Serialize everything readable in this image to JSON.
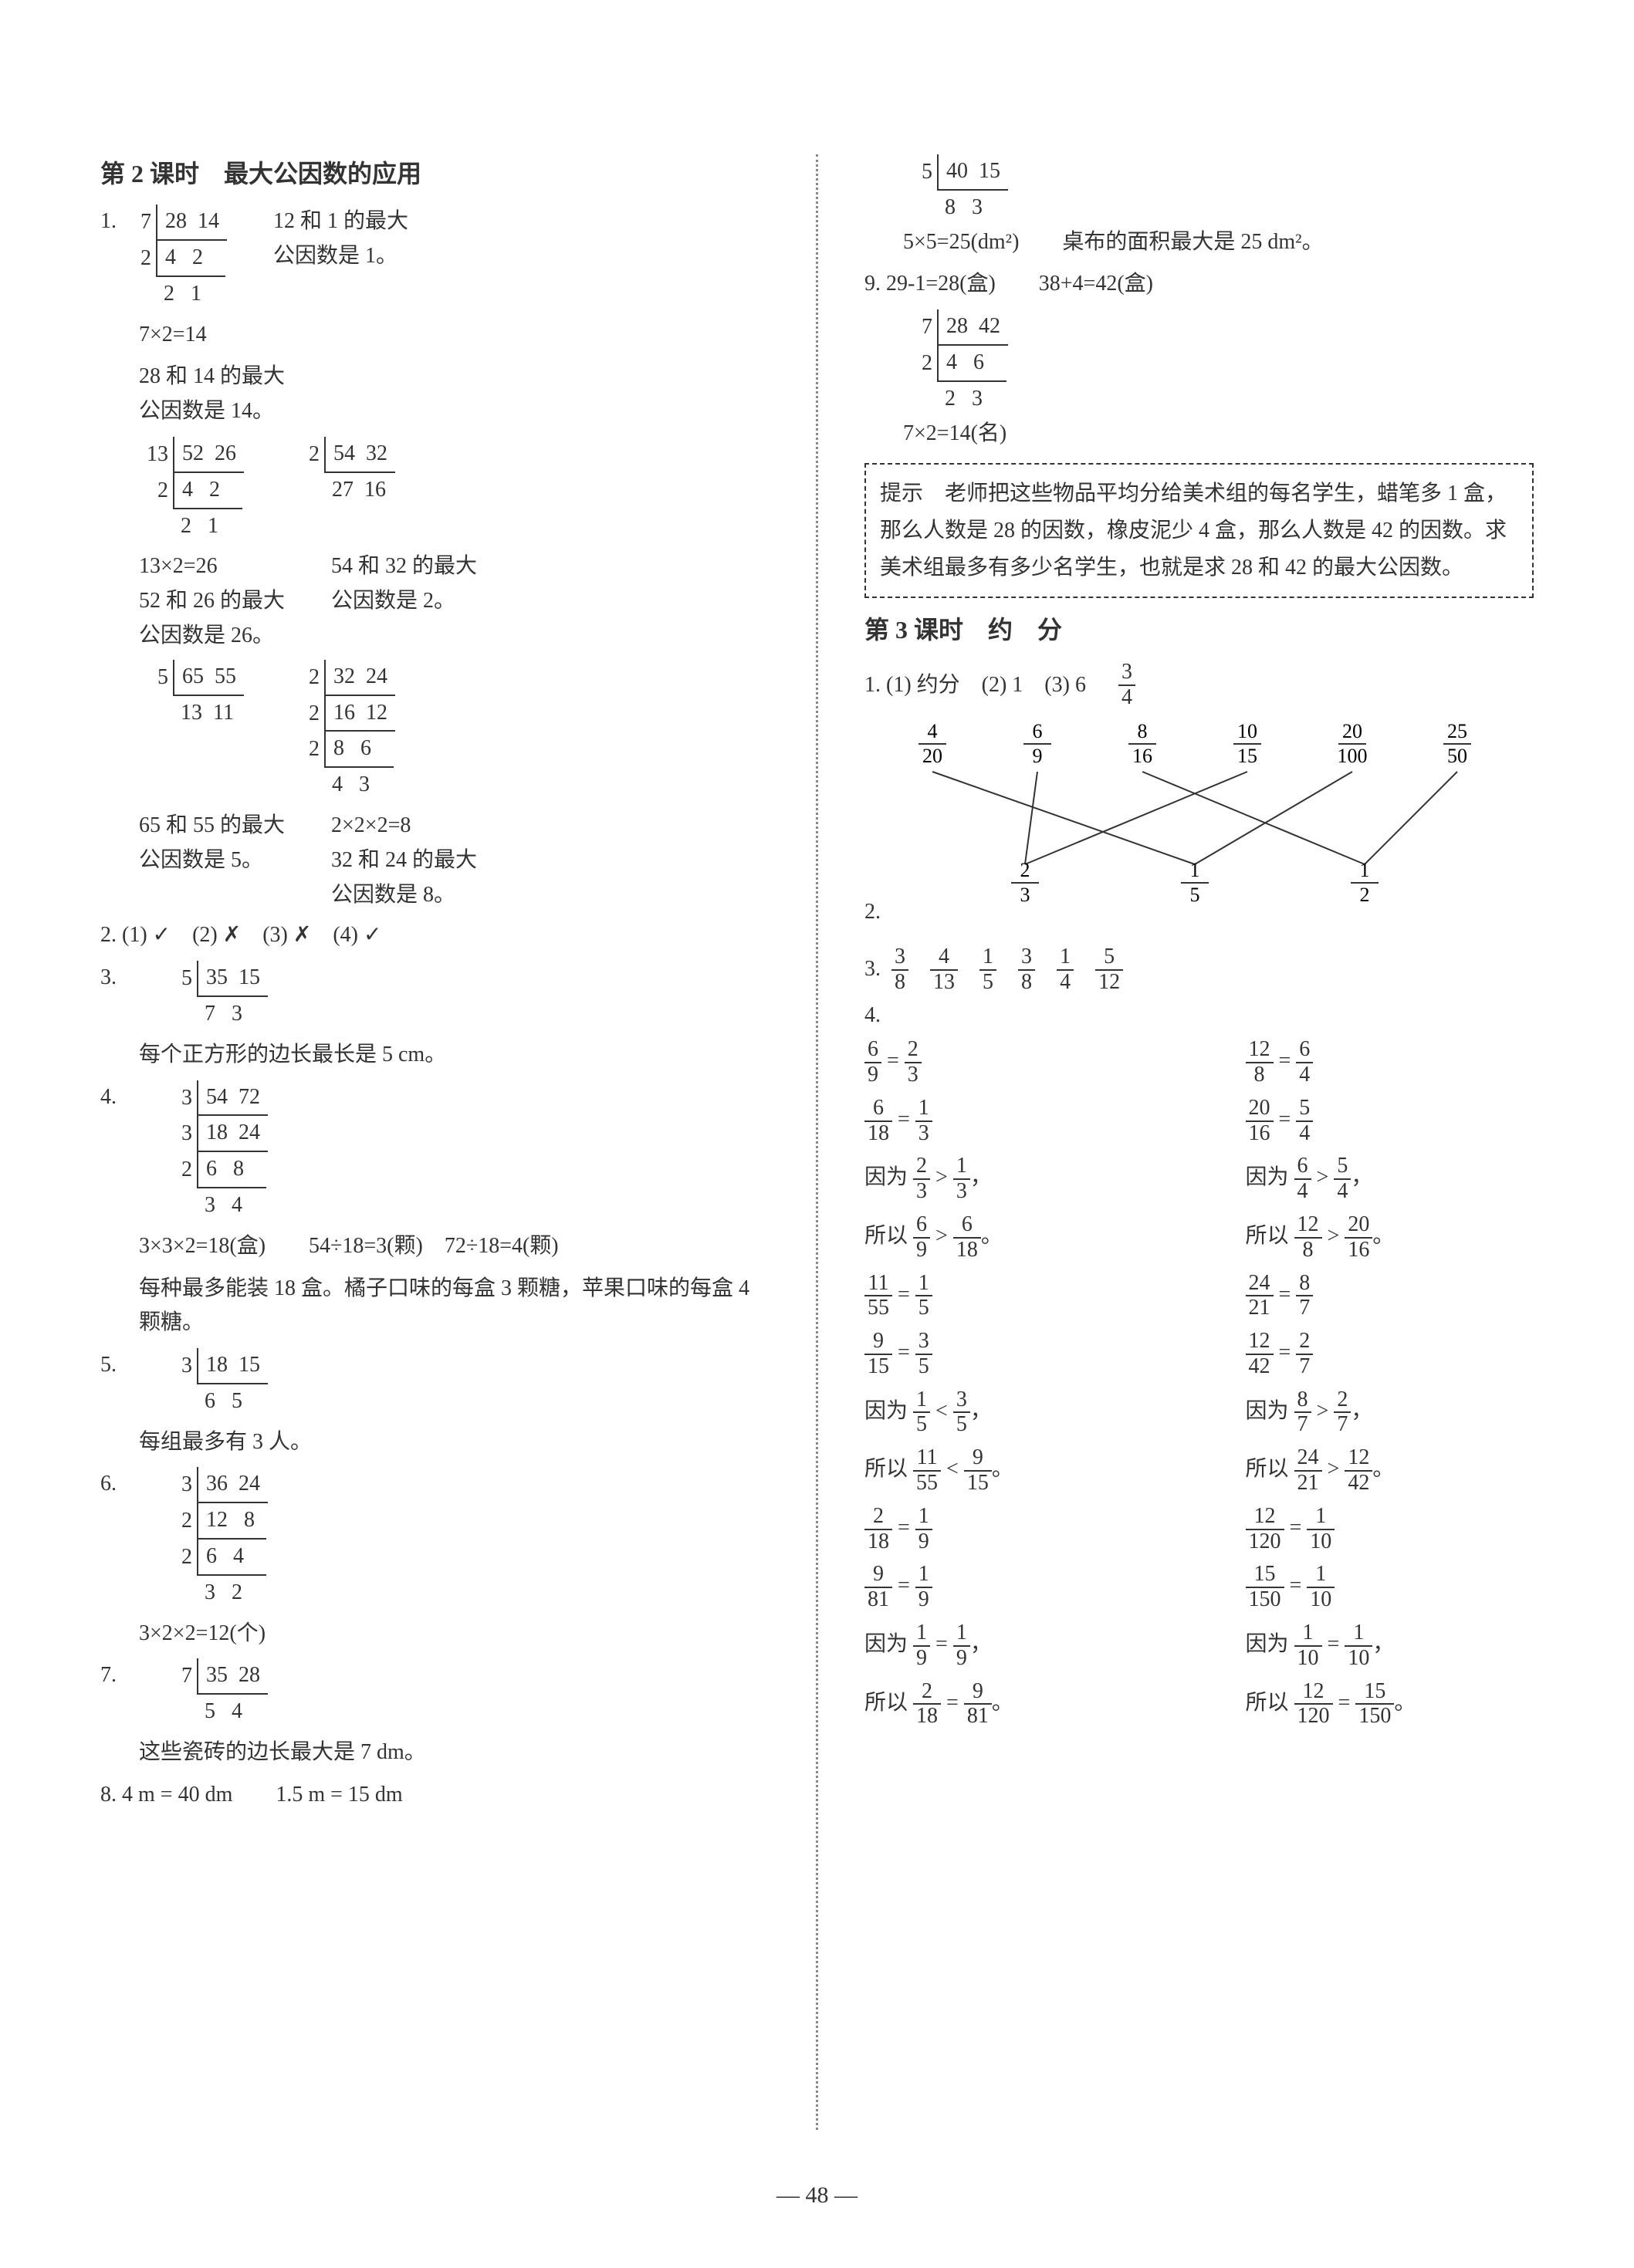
{
  "page_number": "48",
  "left": {
    "title": "第 2 课时　最大公因数的应用",
    "q1": {
      "div1": {
        "steps": [
          [
            "7",
            "28  14"
          ],
          [
            "2",
            "4   2"
          ]
        ],
        "bottom": "2   1"
      },
      "r1": [
        "12 和 1 的最大",
        "公因数是 1。"
      ],
      "calc1": "7×2=14",
      "r2": [
        "28 和 14 的最大",
        "公因数是 14。"
      ],
      "div2": {
        "steps": [
          [
            "13",
            "52  26"
          ],
          [
            "2",
            "4   2"
          ]
        ],
        "bottom": "2   1"
      },
      "div3": {
        "steps": [
          [
            "2",
            "54  32"
          ]
        ],
        "bottom": "27  16"
      },
      "calc2": "13×2=26",
      "r3": [
        "52 和 26 的最大",
        "公因数是 26。"
      ],
      "r4": [
        "54 和 32 的最大",
        "公因数是 2。"
      ],
      "div4": {
        "steps": [
          [
            "5",
            "65  55"
          ]
        ],
        "bottom": "13  11"
      },
      "div5": {
        "steps": [
          [
            "2",
            "32  24"
          ],
          [
            "2",
            "16  12"
          ],
          [
            "2",
            "8   6"
          ]
        ],
        "bottom": "4   3"
      },
      "r5": [
        "65 和 55 的最大",
        "公因数是 5。"
      ],
      "calc3": "2×2×2=8",
      "r6": [
        "32 和 24 的最大",
        "公因数是 8。"
      ]
    },
    "q2": "2. (1) ✓　(2) ✗　(3) ✗　(4) ✓",
    "q3": {
      "label": "3.",
      "div": {
        "steps": [
          [
            "5",
            "35  15"
          ]
        ],
        "bottom": "7   3"
      },
      "text": "每个正方形的边长最长是 5 cm。"
    },
    "q4": {
      "label": "4.",
      "div": {
        "steps": [
          [
            "3",
            "54  72"
          ],
          [
            "3",
            "18  24"
          ],
          [
            "2",
            "6   8"
          ]
        ],
        "bottom": "3   4"
      },
      "calc": "3×3×2=18(盒)　　54÷18=3(颗)　72÷18=4(颗)",
      "text": "每种最多能装 18 盒。橘子口味的每盒 3 颗糖，苹果口味的每盒 4 颗糖。"
    },
    "q5": {
      "label": "5.",
      "div": {
        "steps": [
          [
            "3",
            "18  15"
          ]
        ],
        "bottom": "6   5"
      },
      "text": "每组最多有 3 人。"
    },
    "q6": {
      "label": "6.",
      "div": {
        "steps": [
          [
            "3",
            "36  24"
          ],
          [
            "2",
            "12   8"
          ],
          [
            "2",
            "6   4"
          ]
        ],
        "bottom": "3   2"
      },
      "calc": "3×2×2=12(个)"
    },
    "q7": {
      "label": "7.",
      "div": {
        "steps": [
          [
            "7",
            "35  28"
          ]
        ],
        "bottom": "5   4"
      },
      "text": "这些瓷砖的边长最大是 7 dm。"
    },
    "q8": "8. 4 m = 40 dm　　1.5 m = 15 dm"
  },
  "right": {
    "q8b": {
      "div": {
        "steps": [
          [
            "5",
            "40  15"
          ]
        ],
        "bottom": "8   3"
      },
      "calc": "5×5=25(dm²)　　桌布的面积最大是 25 dm²。"
    },
    "q9": {
      "line1": "9. 29-1=28(盒)　　38+4=42(盒)",
      "div": {
        "steps": [
          [
            "7",
            "28  42"
          ],
          [
            "2",
            "4   6"
          ]
        ],
        "bottom": "2   3"
      },
      "calc": "7×2=14(名)"
    },
    "hint": "提示　老师把这些物品平均分给美术组的每名学生，蜡笔多 1 盒，那么人数是 28 的因数，橡皮泥少 4 盒，那么人数是 42 的因数。求美术组最多有多少名学生，也就是求 28 和 42 的最大公因数。",
    "title2": "第 3 课时　约　分",
    "s1": {
      "prefix": "1. (1) 约分　(2) 1　(3) 6　",
      "frac": {
        "n": "3",
        "d": "4"
      }
    },
    "s2": {
      "label": "2.",
      "top_fracs": [
        {
          "n": "4",
          "d": "20"
        },
        {
          "n": "6",
          "d": "9"
        },
        {
          "n": "8",
          "d": "16"
        },
        {
          "n": "10",
          "d": "15"
        },
        {
          "n": "20",
          "d": "100"
        },
        {
          "n": "25",
          "d": "50"
        }
      ],
      "bottom_fracs": [
        {
          "n": "2",
          "d": "3"
        },
        {
          "n": "1",
          "d": "5"
        },
        {
          "n": "1",
          "d": "2"
        }
      ],
      "edges": [
        [
          0,
          1
        ],
        [
          1,
          0
        ],
        [
          2,
          2
        ],
        [
          3,
          0
        ],
        [
          4,
          1
        ],
        [
          5,
          2
        ]
      ]
    },
    "s3": {
      "label": "3.",
      "fracs": [
        {
          "n": "3",
          "d": "8"
        },
        {
          "n": "4",
          "d": "13"
        },
        {
          "n": "1",
          "d": "5"
        },
        {
          "n": "3",
          "d": "8"
        },
        {
          "n": "1",
          "d": "4"
        },
        {
          "n": "5",
          "d": "12"
        }
      ]
    },
    "s4": {
      "label": "4.",
      "pairs": [
        {
          "left": {
            "eq1": {
              "a": {
                "n": "6",
                "d": "9"
              },
              "b": {
                "n": "2",
                "d": "3"
              }
            },
            "eq2": {
              "a": {
                "n": "6",
                "d": "18"
              },
              "b": {
                "n": "1",
                "d": "3"
              }
            },
            "because": {
              "a": {
                "n": "2",
                "d": "3"
              },
              "op": ">",
              "b": {
                "n": "1",
                "d": "3"
              }
            },
            "so": {
              "a": {
                "n": "6",
                "d": "9"
              },
              "op": ">",
              "b": {
                "n": "6",
                "d": "18"
              }
            }
          },
          "right": {
            "eq1": {
              "a": {
                "n": "12",
                "d": "8"
              },
              "b": {
                "n": "6",
                "d": "4"
              }
            },
            "eq2": {
              "a": {
                "n": "20",
                "d": "16"
              },
              "b": {
                "n": "5",
                "d": "4"
              }
            },
            "because": {
              "a": {
                "n": "6",
                "d": "4"
              },
              "op": ">",
              "b": {
                "n": "5",
                "d": "4"
              }
            },
            "so": {
              "a": {
                "n": "12",
                "d": "8"
              },
              "op": ">",
              "b": {
                "n": "20",
                "d": "16"
              }
            }
          }
        },
        {
          "left": {
            "eq1": {
              "a": {
                "n": "11",
                "d": "55"
              },
              "b": {
                "n": "1",
                "d": "5"
              }
            },
            "eq2": {
              "a": {
                "n": "9",
                "d": "15"
              },
              "b": {
                "n": "3",
                "d": "5"
              }
            },
            "because": {
              "a": {
                "n": "1",
                "d": "5"
              },
              "op": "<",
              "b": {
                "n": "3",
                "d": "5"
              }
            },
            "so": {
              "a": {
                "n": "11",
                "d": "55"
              },
              "op": "<",
              "b": {
                "n": "9",
                "d": "15"
              }
            }
          },
          "right": {
            "eq1": {
              "a": {
                "n": "24",
                "d": "21"
              },
              "b": {
                "n": "8",
                "d": "7"
              }
            },
            "eq2": {
              "a": {
                "n": "12",
                "d": "42"
              },
              "b": {
                "n": "2",
                "d": "7"
              }
            },
            "because": {
              "a": {
                "n": "8",
                "d": "7"
              },
              "op": ">",
              "b": {
                "n": "2",
                "d": "7"
              }
            },
            "so": {
              "a": {
                "n": "24",
                "d": "21"
              },
              "op": ">",
              "b": {
                "n": "12",
                "d": "42"
              }
            }
          }
        },
        {
          "left": {
            "eq1": {
              "a": {
                "n": "2",
                "d": "18"
              },
              "b": {
                "n": "1",
                "d": "9"
              }
            },
            "eq2": {
              "a": {
                "n": "9",
                "d": "81"
              },
              "b": {
                "n": "1",
                "d": "9"
              }
            },
            "because": {
              "a": {
                "n": "1",
                "d": "9"
              },
              "op": "=",
              "b": {
                "n": "1",
                "d": "9"
              }
            },
            "so": {
              "a": {
                "n": "2",
                "d": "18"
              },
              "op": "=",
              "b": {
                "n": "9",
                "d": "81"
              }
            }
          },
          "right": {
            "eq1": {
              "a": {
                "n": "12",
                "d": "120"
              },
              "b": {
                "n": "1",
                "d": "10"
              }
            },
            "eq2": {
              "a": {
                "n": "15",
                "d": "150"
              },
              "b": {
                "n": "1",
                "d": "10"
              }
            },
            "because": {
              "a": {
                "n": "1",
                "d": "10"
              },
              "op": "=",
              "b": {
                "n": "1",
                "d": "10"
              }
            },
            "so": {
              "a": {
                "n": "12",
                "d": "120"
              },
              "op": "=",
              "b": {
                "n": "15",
                "d": "150"
              }
            }
          }
        }
      ]
    }
  }
}
